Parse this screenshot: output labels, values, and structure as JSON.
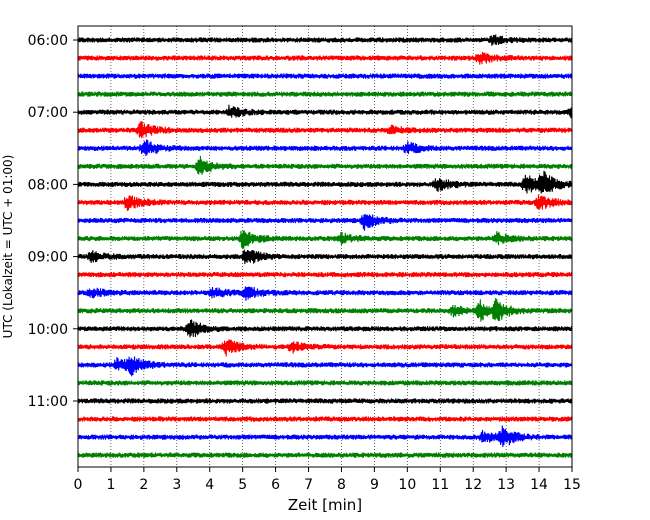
{
  "chart_data": {
    "type": "line",
    "subtype": "seismic-helicorder",
    "xlabel": "Zeit  [min]",
    "ylabel": "UTC (Lokalzeit = UTC + 01:00)",
    "xlim": [
      0,
      15
    ],
    "x_ticks": [
      "0",
      "1",
      "2",
      "3",
      "4",
      "5",
      "6",
      "7",
      "8",
      "9",
      "10",
      "11",
      "12",
      "13",
      "14",
      "15"
    ],
    "y_tick_labels": [
      "06:00",
      "07:00",
      "08:00",
      "09:00",
      "10:00",
      "11:00"
    ],
    "trace_interval_minutes": 15,
    "grid": "vertical-dotted",
    "trace_colors": [
      "#000000",
      "#ff0000",
      "#0000ff",
      "#008000"
    ],
    "traces": [
      {
        "start": "06:00",
        "color": "#000000",
        "events": [
          [
            12.6,
            0.5
          ]
        ]
      },
      {
        "start": "06:15",
        "color": "#ff0000",
        "events": [
          [
            12.2,
            0.6
          ]
        ]
      },
      {
        "start": "06:30",
        "color": "#0000ff",
        "events": []
      },
      {
        "start": "06:45",
        "color": "#008000",
        "events": []
      },
      {
        "start": "07:00",
        "color": "#000000",
        "events": [
          [
            4.6,
            0.6
          ],
          [
            15.0,
            0.5
          ]
        ]
      },
      {
        "start": "07:15",
        "color": "#ff0000",
        "events": [
          [
            1.9,
            0.9
          ],
          [
            9.5,
            0.4
          ]
        ]
      },
      {
        "start": "07:30",
        "color": "#0000ff",
        "events": [
          [
            2.0,
            0.9
          ],
          [
            10.0,
            0.6
          ]
        ]
      },
      {
        "start": "07:45",
        "color": "#008000",
        "events": [
          [
            3.7,
            1.0
          ]
        ]
      },
      {
        "start": "08:00",
        "color": "#000000",
        "events": [
          [
            10.9,
            0.7
          ],
          [
            13.6,
            1.0
          ],
          [
            14.1,
            1.2
          ]
        ]
      },
      {
        "start": "08:15",
        "color": "#ff0000",
        "events": [
          [
            1.5,
            0.8
          ],
          [
            14.0,
            0.8
          ]
        ]
      },
      {
        "start": "08:30",
        "color": "#0000ff",
        "events": [
          [
            8.7,
            0.9
          ]
        ]
      },
      {
        "start": "08:45",
        "color": "#008000",
        "events": [
          [
            5.0,
            1.0
          ],
          [
            8.0,
            0.5
          ],
          [
            12.7,
            0.6
          ]
        ]
      },
      {
        "start": "09:00",
        "color": "#000000",
        "events": [
          [
            0.4,
            0.5
          ],
          [
            5.1,
            1.0
          ]
        ]
      },
      {
        "start": "09:15",
        "color": "#ff0000",
        "events": []
      },
      {
        "start": "09:30",
        "color": "#0000ff",
        "events": [
          [
            0.4,
            0.5
          ],
          [
            4.1,
            0.5
          ],
          [
            5.1,
            0.7
          ]
        ]
      },
      {
        "start": "09:45",
        "color": "#008000",
        "events": [
          [
            11.4,
            0.5
          ],
          [
            12.2,
            1.0
          ],
          [
            12.7,
            1.0
          ]
        ]
      },
      {
        "start": "10:00",
        "color": "#000000",
        "events": [
          [
            3.4,
            1.0
          ]
        ]
      },
      {
        "start": "10:15",
        "color": "#ff0000",
        "events": [
          [
            4.5,
            0.8
          ],
          [
            6.5,
            0.5
          ]
        ]
      },
      {
        "start": "10:30",
        "color": "#0000ff",
        "events": [
          [
            1.2,
            0.7
          ],
          [
            1.6,
            0.9
          ]
        ]
      },
      {
        "start": "10:45",
        "color": "#008000",
        "events": []
      },
      {
        "start": "11:00",
        "color": "#000000",
        "events": []
      },
      {
        "start": "11:15",
        "color": "#ff0000",
        "events": []
      },
      {
        "start": "11:30",
        "color": "#0000ff",
        "events": [
          [
            12.3,
            0.6
          ],
          [
            12.9,
            1.0
          ]
        ]
      },
      {
        "start": "11:45",
        "color": "#008000",
        "events": []
      }
    ]
  }
}
